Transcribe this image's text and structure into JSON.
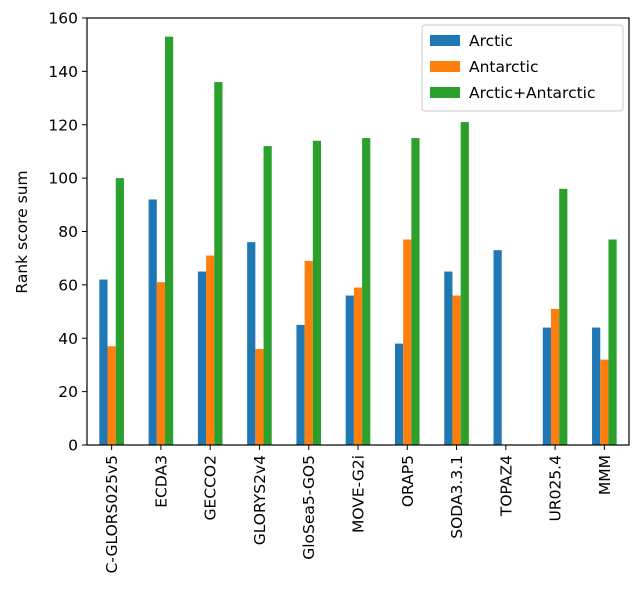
{
  "chart_data": {
    "type": "bar",
    "title": "",
    "xlabel": "",
    "ylabel": "Rank score sum",
    "ylim": [
      0,
      160
    ],
    "yticks": [
      0,
      20,
      40,
      60,
      80,
      100,
      120,
      140,
      160
    ],
    "grid": false,
    "legend_position": "top-right",
    "categories": [
      "C-GLORS025v5",
      "ECDA3",
      "GECCO2",
      "GLORYS2v4",
      "GloSea5-GO5",
      "MOVE-G2i",
      "ORAP5",
      "SODA3.3.1",
      "TOPAZ4",
      "UR025.4",
      "MMM"
    ],
    "series": [
      {
        "name": "Arctic",
        "color": "#1f77b4",
        "values": [
          62,
          92,
          65,
          76,
          45,
          56,
          38,
          65,
          73,
          44,
          44
        ]
      },
      {
        "name": "Antarctic",
        "color": "#ff7f0e",
        "values": [
          37,
          61,
          71,
          36,
          69,
          59,
          77,
          56,
          null,
          51,
          32
        ]
      },
      {
        "name": "Arctic+Antarctic",
        "color": "#2ca02c",
        "values": [
          100,
          153,
          136,
          112,
          114,
          115,
          115,
          121,
          null,
          96,
          77
        ]
      }
    ]
  }
}
